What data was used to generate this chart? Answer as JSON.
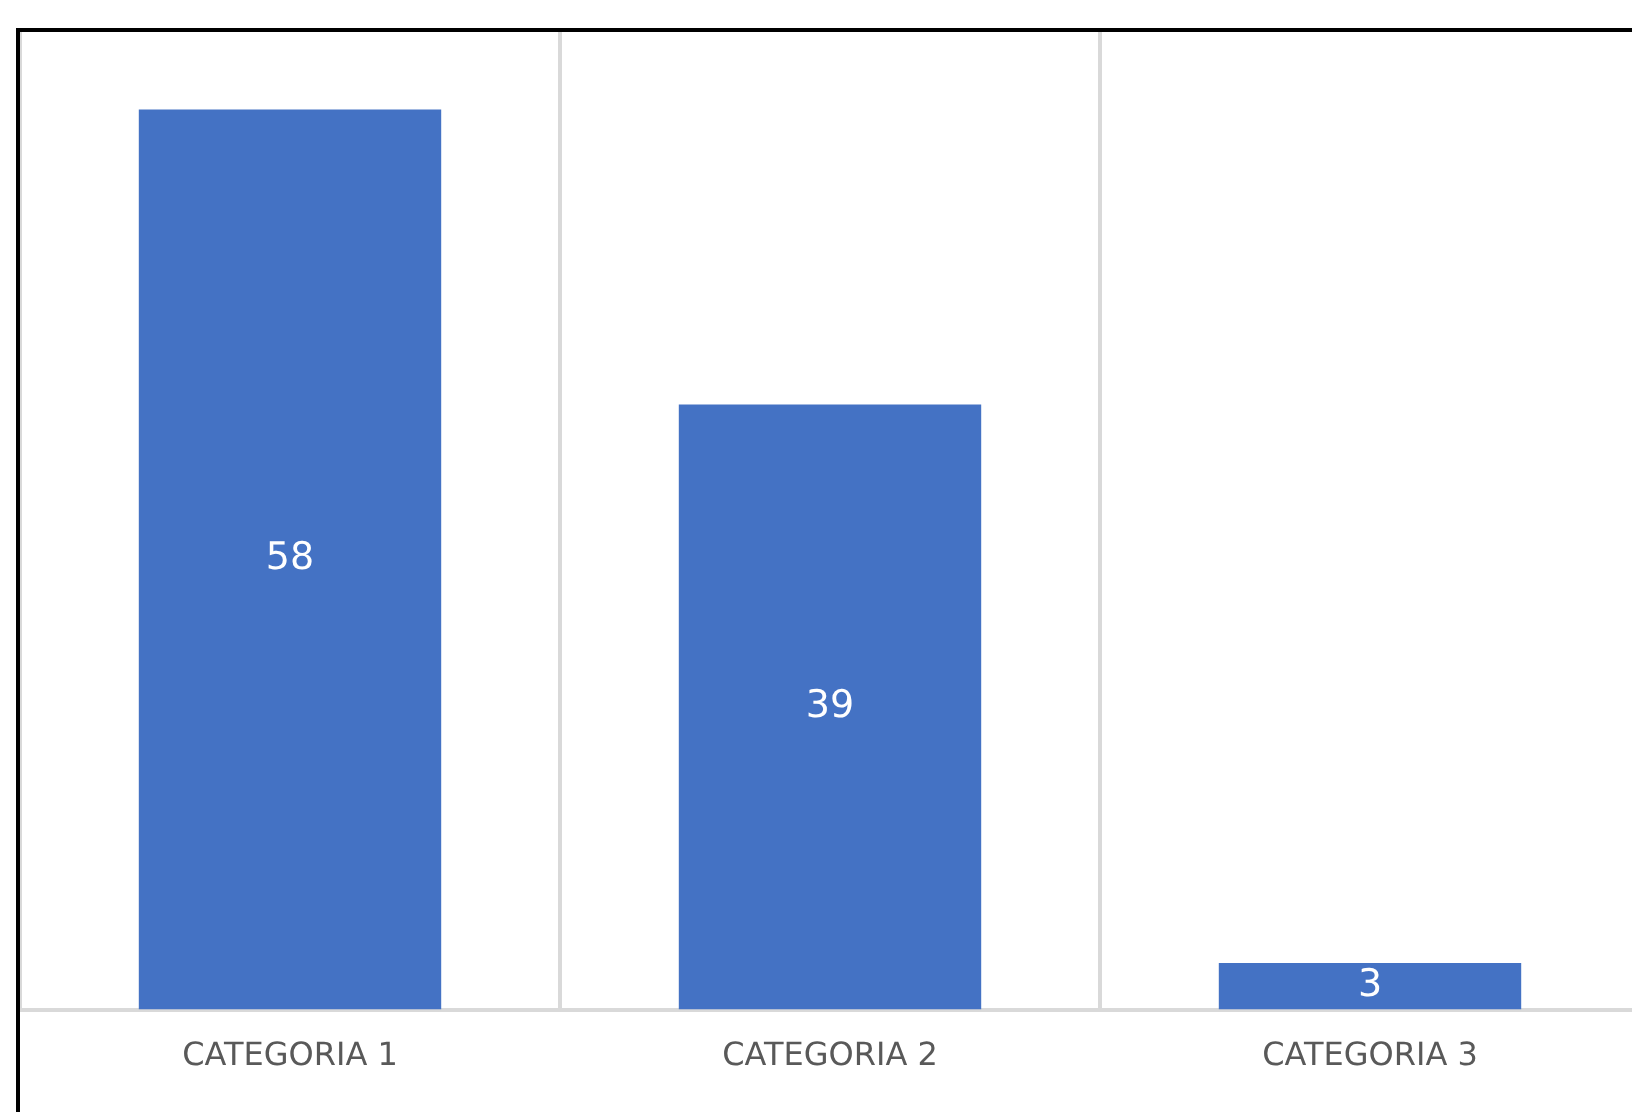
{
  "chart_data": {
    "type": "bar",
    "categories": [
      "CATEGORIA 1",
      "CATEGORIA 2",
      "CATEGORIA 3"
    ],
    "values": [
      58,
      39,
      3
    ],
    "color": "#4472c4",
    "ylim": [
      0,
      63
    ],
    "data_labels": true,
    "grid": "x"
  }
}
